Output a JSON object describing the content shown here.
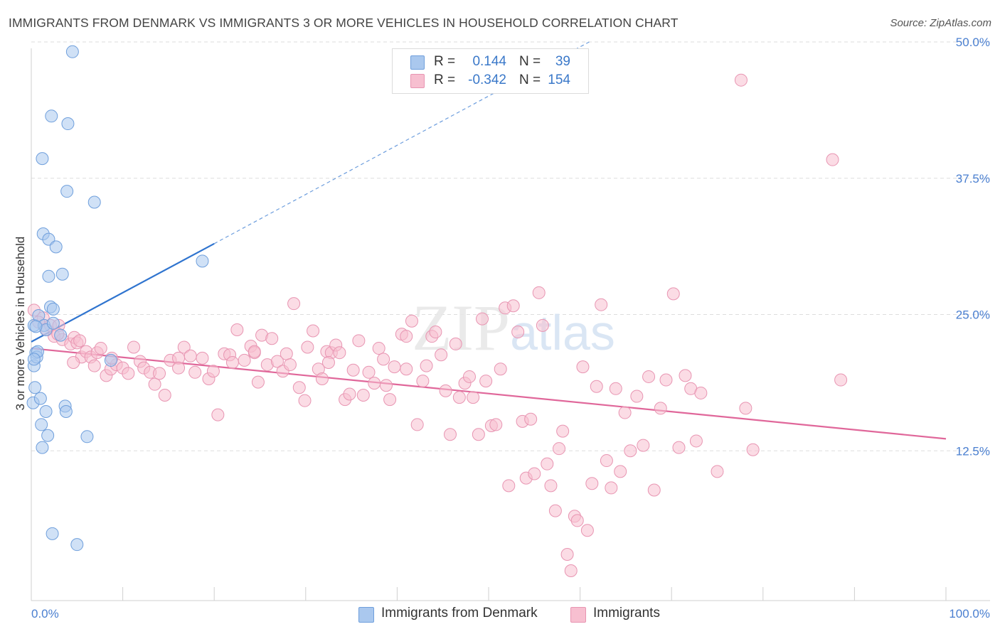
{
  "title": "IMMIGRANTS FROM DENMARK VS IMMIGRANTS 3 OR MORE VEHICLES IN HOUSEHOLD CORRELATION CHART",
  "source": "Source: ZipAtlas.com",
  "watermark": "ZIPatlas",
  "colors": {
    "blue_fill": "#aac8ee",
    "blue_stroke": "#6f9fdc",
    "blue_line": "#2f74cf",
    "pink_fill": "#f7bfd0",
    "pink_stroke": "#e895b2",
    "pink_line": "#e0679a",
    "tick_label": "#4a7fd0",
    "grid": "#dddddd"
  },
  "legend_top": {
    "rows": [
      {
        "r_label": "R =",
        "r_value": "0.144",
        "n_label": "N =",
        "n_value": "39",
        "color": "#aac8ee"
      },
      {
        "r_label": "R =",
        "r_value": "-0.342",
        "n_label": "N =",
        "n_value": "154",
        "color": "#f7bfd0"
      }
    ]
  },
  "legend_bottom": {
    "items": [
      {
        "label": "Immigrants from Denmark",
        "color": "#aac8ee"
      },
      {
        "label": "Immigrants",
        "color": "#f7bfd0"
      }
    ]
  },
  "chart_data": {
    "type": "scatter",
    "title": "IMMIGRANTS FROM DENMARK VS IMMIGRANTS 3 OR MORE VEHICLES IN HOUSEHOLD CORRELATION CHART",
    "xlabel": "",
    "ylabel": "3 or more Vehicles in Household",
    "xlim": [
      0,
      100
    ],
    "ylim": [
      0,
      50
    ],
    "x_tick_labels": [
      "0.0%",
      "100.0%"
    ],
    "y_ticks": [
      12.5,
      25.0,
      37.5,
      50.0
    ],
    "y_tick_labels": [
      "12.5%",
      "25.0%",
      "37.5%",
      "50.0%"
    ],
    "grid": "horizontal dashed",
    "series": [
      {
        "name": "Immigrants from Denmark",
        "r": 0.144,
        "n": 39,
        "trend": {
          "x0": 0,
          "y0": 22.5,
          "x1": 20,
          "y1": 31.5,
          "extended_to": {
            "x": 61,
            "y": 50
          }
        },
        "points": [
          [
            0.2,
            16.9
          ],
          [
            0.3,
            24.0
          ],
          [
            0.3,
            20.3
          ],
          [
            0.4,
            18.3
          ],
          [
            0.5,
            21.5
          ],
          [
            0.6,
            21.1
          ],
          [
            0.7,
            21.6
          ],
          [
            0.8,
            24.9
          ],
          [
            1.0,
            17.3
          ],
          [
            1.1,
            14.9
          ],
          [
            1.2,
            39.3
          ],
          [
            1.2,
            12.8
          ],
          [
            1.3,
            32.4
          ],
          [
            1.4,
            24.0
          ],
          [
            1.6,
            16.1
          ],
          [
            1.6,
            23.6
          ],
          [
            1.8,
            13.9
          ],
          [
            1.9,
            31.9
          ],
          [
            1.9,
            28.5
          ],
          [
            2.1,
            25.7
          ],
          [
            2.2,
            43.2
          ],
          [
            2.3,
            4.9
          ],
          [
            2.4,
            24.2
          ],
          [
            2.4,
            25.5
          ],
          [
            2.7,
            31.2
          ],
          [
            3.2,
            23.1
          ],
          [
            3.4,
            28.7
          ],
          [
            3.7,
            16.6
          ],
          [
            3.8,
            16.1
          ],
          [
            3.9,
            36.3
          ],
          [
            4.0,
            42.5
          ],
          [
            4.5,
            49.1
          ],
          [
            5.0,
            3.9
          ],
          [
            6.1,
            13.8
          ],
          [
            6.9,
            35.3
          ],
          [
            8.7,
            20.8
          ],
          [
            18.7,
            29.9
          ],
          [
            0.3,
            20.9
          ],
          [
            0.5,
            23.9
          ]
        ]
      },
      {
        "name": "Immigrants",
        "r": -0.342,
        "n": 154,
        "trend": {
          "x0": 0,
          "y0": 21.9,
          "x1": 100,
          "y1": 13.6
        },
        "points": [
          [
            0.3,
            25.4
          ],
          [
            1.3,
            24.7
          ],
          [
            1.7,
            23.6
          ],
          [
            2.1,
            24.0
          ],
          [
            2.5,
            23.0
          ],
          [
            3.0,
            24.0
          ],
          [
            3.4,
            22.7
          ],
          [
            4.3,
            22.3
          ],
          [
            4.7,
            22.9
          ],
          [
            5.0,
            22.4
          ],
          [
            5.3,
            22.6
          ],
          [
            5.5,
            21.1
          ],
          [
            6.0,
            21.6
          ],
          [
            6.5,
            21.1
          ],
          [
            7.2,
            21.5
          ],
          [
            7.6,
            21.9
          ],
          [
            8.2,
            19.4
          ],
          [
            8.7,
            20.0
          ],
          [
            9.3,
            20.4
          ],
          [
            10.0,
            20.1
          ],
          [
            10.6,
            19.6
          ],
          [
            11.2,
            22.0
          ],
          [
            11.9,
            20.7
          ],
          [
            12.3,
            20.1
          ],
          [
            13.0,
            19.7
          ],
          [
            13.5,
            18.6
          ],
          [
            14.0,
            19.6
          ],
          [
            14.6,
            17.6
          ],
          [
            15.2,
            20.8
          ],
          [
            16.1,
            21.0
          ],
          [
            16.7,
            22.0
          ],
          [
            17.4,
            21.2
          ],
          [
            17.9,
            19.7
          ],
          [
            18.7,
            21.0
          ],
          [
            19.4,
            19.1
          ],
          [
            19.9,
            19.8
          ],
          [
            20.4,
            15.8
          ],
          [
            21.1,
            21.4
          ],
          [
            21.7,
            21.3
          ],
          [
            22.0,
            20.6
          ],
          [
            22.5,
            23.6
          ],
          [
            23.3,
            20.8
          ],
          [
            24.0,
            22.1
          ],
          [
            24.4,
            21.5
          ],
          [
            24.8,
            18.8
          ],
          [
            25.2,
            23.1
          ],
          [
            25.8,
            20.4
          ],
          [
            26.3,
            22.8
          ],
          [
            26.9,
            20.7
          ],
          [
            27.5,
            19.8
          ],
          [
            27.9,
            21.4
          ],
          [
            28.3,
            20.4
          ],
          [
            28.7,
            26.0
          ],
          [
            29.3,
            18.3
          ],
          [
            29.9,
            17.1
          ],
          [
            30.2,
            22.0
          ],
          [
            30.8,
            23.5
          ],
          [
            31.4,
            20.0
          ],
          [
            31.8,
            19.1
          ],
          [
            32.3,
            21.6
          ],
          [
            32.8,
            21.5
          ],
          [
            33.3,
            22.2
          ],
          [
            33.7,
            21.5
          ],
          [
            34.3,
            17.2
          ],
          [
            34.8,
            17.7
          ],
          [
            35.2,
            19.9
          ],
          [
            35.8,
            22.6
          ],
          [
            36.3,
            17.6
          ],
          [
            36.9,
            19.7
          ],
          [
            37.5,
            18.7
          ],
          [
            38.0,
            21.9
          ],
          [
            38.5,
            20.9
          ],
          [
            38.8,
            18.5
          ],
          [
            39.2,
            17.2
          ],
          [
            39.7,
            20.2
          ],
          [
            40.5,
            23.2
          ],
          [
            41.0,
            23.0
          ],
          [
            41.6,
            24.4
          ],
          [
            42.2,
            14.9
          ],
          [
            42.8,
            18.9
          ],
          [
            43.2,
            20.3
          ],
          [
            43.8,
            23.0
          ],
          [
            44.2,
            23.4
          ],
          [
            44.8,
            21.3
          ],
          [
            45.3,
            18.0
          ],
          [
            45.8,
            14.0
          ],
          [
            46.4,
            22.3
          ],
          [
            46.8,
            17.4
          ],
          [
            47.4,
            18.7
          ],
          [
            47.9,
            19.3
          ],
          [
            48.3,
            17.4
          ],
          [
            48.9,
            14.0
          ],
          [
            49.3,
            24.6
          ],
          [
            49.7,
            18.9
          ],
          [
            50.3,
            14.8
          ],
          [
            50.8,
            14.9
          ],
          [
            51.3,
            20.0
          ],
          [
            51.8,
            25.6
          ],
          [
            52.2,
            9.3
          ],
          [
            52.7,
            25.8
          ],
          [
            53.2,
            23.4
          ],
          [
            53.7,
            15.2
          ],
          [
            54.1,
            10.0
          ],
          [
            54.6,
            15.4
          ],
          [
            55.0,
            10.4
          ],
          [
            55.5,
            27.0
          ],
          [
            55.9,
            24.0
          ],
          [
            56.4,
            11.3
          ],
          [
            56.8,
            9.3
          ],
          [
            57.3,
            7.0
          ],
          [
            57.7,
            12.7
          ],
          [
            58.1,
            14.3
          ],
          [
            58.6,
            3.0
          ],
          [
            59.0,
            1.5
          ],
          [
            59.4,
            6.5
          ],
          [
            59.7,
            6.1
          ],
          [
            60.3,
            20.2
          ],
          [
            60.8,
            5.2
          ],
          [
            61.3,
            9.5
          ],
          [
            61.8,
            18.4
          ],
          [
            62.3,
            25.9
          ],
          [
            62.9,
            11.6
          ],
          [
            63.4,
            9.1
          ],
          [
            63.9,
            18.2
          ],
          [
            64.4,
            10.6
          ],
          [
            64.9,
            16.0
          ],
          [
            65.5,
            12.5
          ],
          [
            66.2,
            17.5
          ],
          [
            66.9,
            13.0
          ],
          [
            67.5,
            19.3
          ],
          [
            68.1,
            8.9
          ],
          [
            68.8,
            16.4
          ],
          [
            69.4,
            19.0
          ],
          [
            70.2,
            26.9
          ],
          [
            70.8,
            12.8
          ],
          [
            71.5,
            19.4
          ],
          [
            72.1,
            18.2
          ],
          [
            72.7,
            13.4
          ],
          [
            73.2,
            17.8
          ],
          [
            75.0,
            10.6
          ],
          [
            77.6,
            46.5
          ],
          [
            78.1,
            16.4
          ],
          [
            78.9,
            12.6
          ],
          [
            87.6,
            39.2
          ],
          [
            88.5,
            19.0
          ],
          [
            8.8,
            21.0
          ],
          [
            16.1,
            20.1
          ],
          [
            24.4,
            21.6
          ],
          [
            32.5,
            20.6
          ],
          [
            41.0,
            20.0
          ],
          [
            0.8,
            24.3
          ],
          [
            2.9,
            23.2
          ],
          [
            4.6,
            20.6
          ],
          [
            6.9,
            20.3
          ]
        ]
      }
    ]
  },
  "y_axis_label": "3 or more Vehicles in Household"
}
